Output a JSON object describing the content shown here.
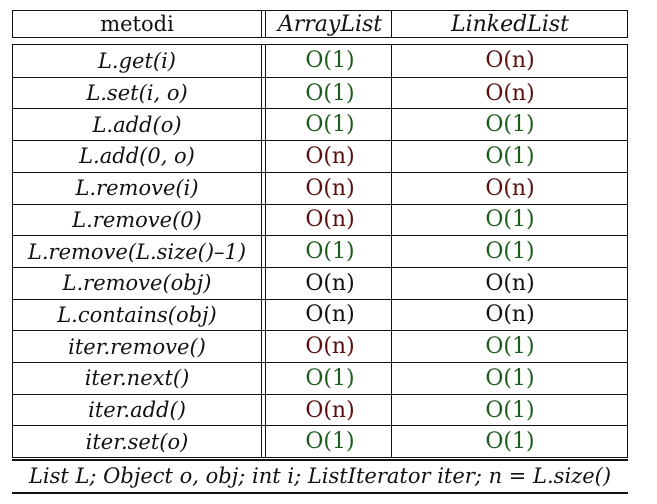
{
  "header": {
    "methods": "metodi",
    "arraylist": "ArrayList",
    "linkedlist": "LinkedList"
  },
  "colors": {
    "green": "#1e5c1e",
    "red": "#5a1010",
    "black": "#111111"
  },
  "rows": [
    {
      "method": "L.get(i)",
      "array": "O(1)",
      "array_color": "green",
      "linked": "O(n)",
      "linked_color": "red"
    },
    {
      "method": "L.set(i, o)",
      "array": "O(1)",
      "array_color": "green",
      "linked": "O(n)",
      "linked_color": "red"
    },
    {
      "method": "L.add(o)",
      "array": "O(1)",
      "array_color": "green",
      "linked": "O(1)",
      "linked_color": "green"
    },
    {
      "method": "L.add(0, o)",
      "array": "O(n)",
      "array_color": "red",
      "linked": "O(1)",
      "linked_color": "green"
    },
    {
      "method": "L.remove(i)",
      "array": "O(n)",
      "array_color": "red",
      "linked": "O(n)",
      "linked_color": "red"
    },
    {
      "method": "L.remove(0)",
      "array": "O(n)",
      "array_color": "red",
      "linked": "O(1)",
      "linked_color": "green"
    },
    {
      "method": "L.remove(L.size()–1)",
      "array": "O(1)",
      "array_color": "green",
      "linked": "O(1)",
      "linked_color": "green"
    },
    {
      "method": "L.remove(obj)",
      "array": "O(n)",
      "array_color": "black",
      "linked": "O(n)",
      "linked_color": "black"
    },
    {
      "method": "L.contains(obj)",
      "array": "O(n)",
      "array_color": "black",
      "linked": "O(n)",
      "linked_color": "black"
    },
    {
      "method": "iter.remove()",
      "array": "O(n)",
      "array_color": "red",
      "linked": "O(1)",
      "linked_color": "green"
    },
    {
      "method": "iter.next()",
      "array": "O(1)",
      "array_color": "green",
      "linked": "O(1)",
      "linked_color": "green"
    },
    {
      "method": "iter.add()",
      "array": "O(n)",
      "array_color": "red",
      "linked": "O(1)",
      "linked_color": "green"
    },
    {
      "method": "iter.set(o)",
      "array": "O(1)",
      "array_color": "green",
      "linked": "O(1)",
      "linked_color": "green"
    }
  ],
  "footer": "List L; Object o, obj; int i; ListIterator iter; n = L.size()"
}
